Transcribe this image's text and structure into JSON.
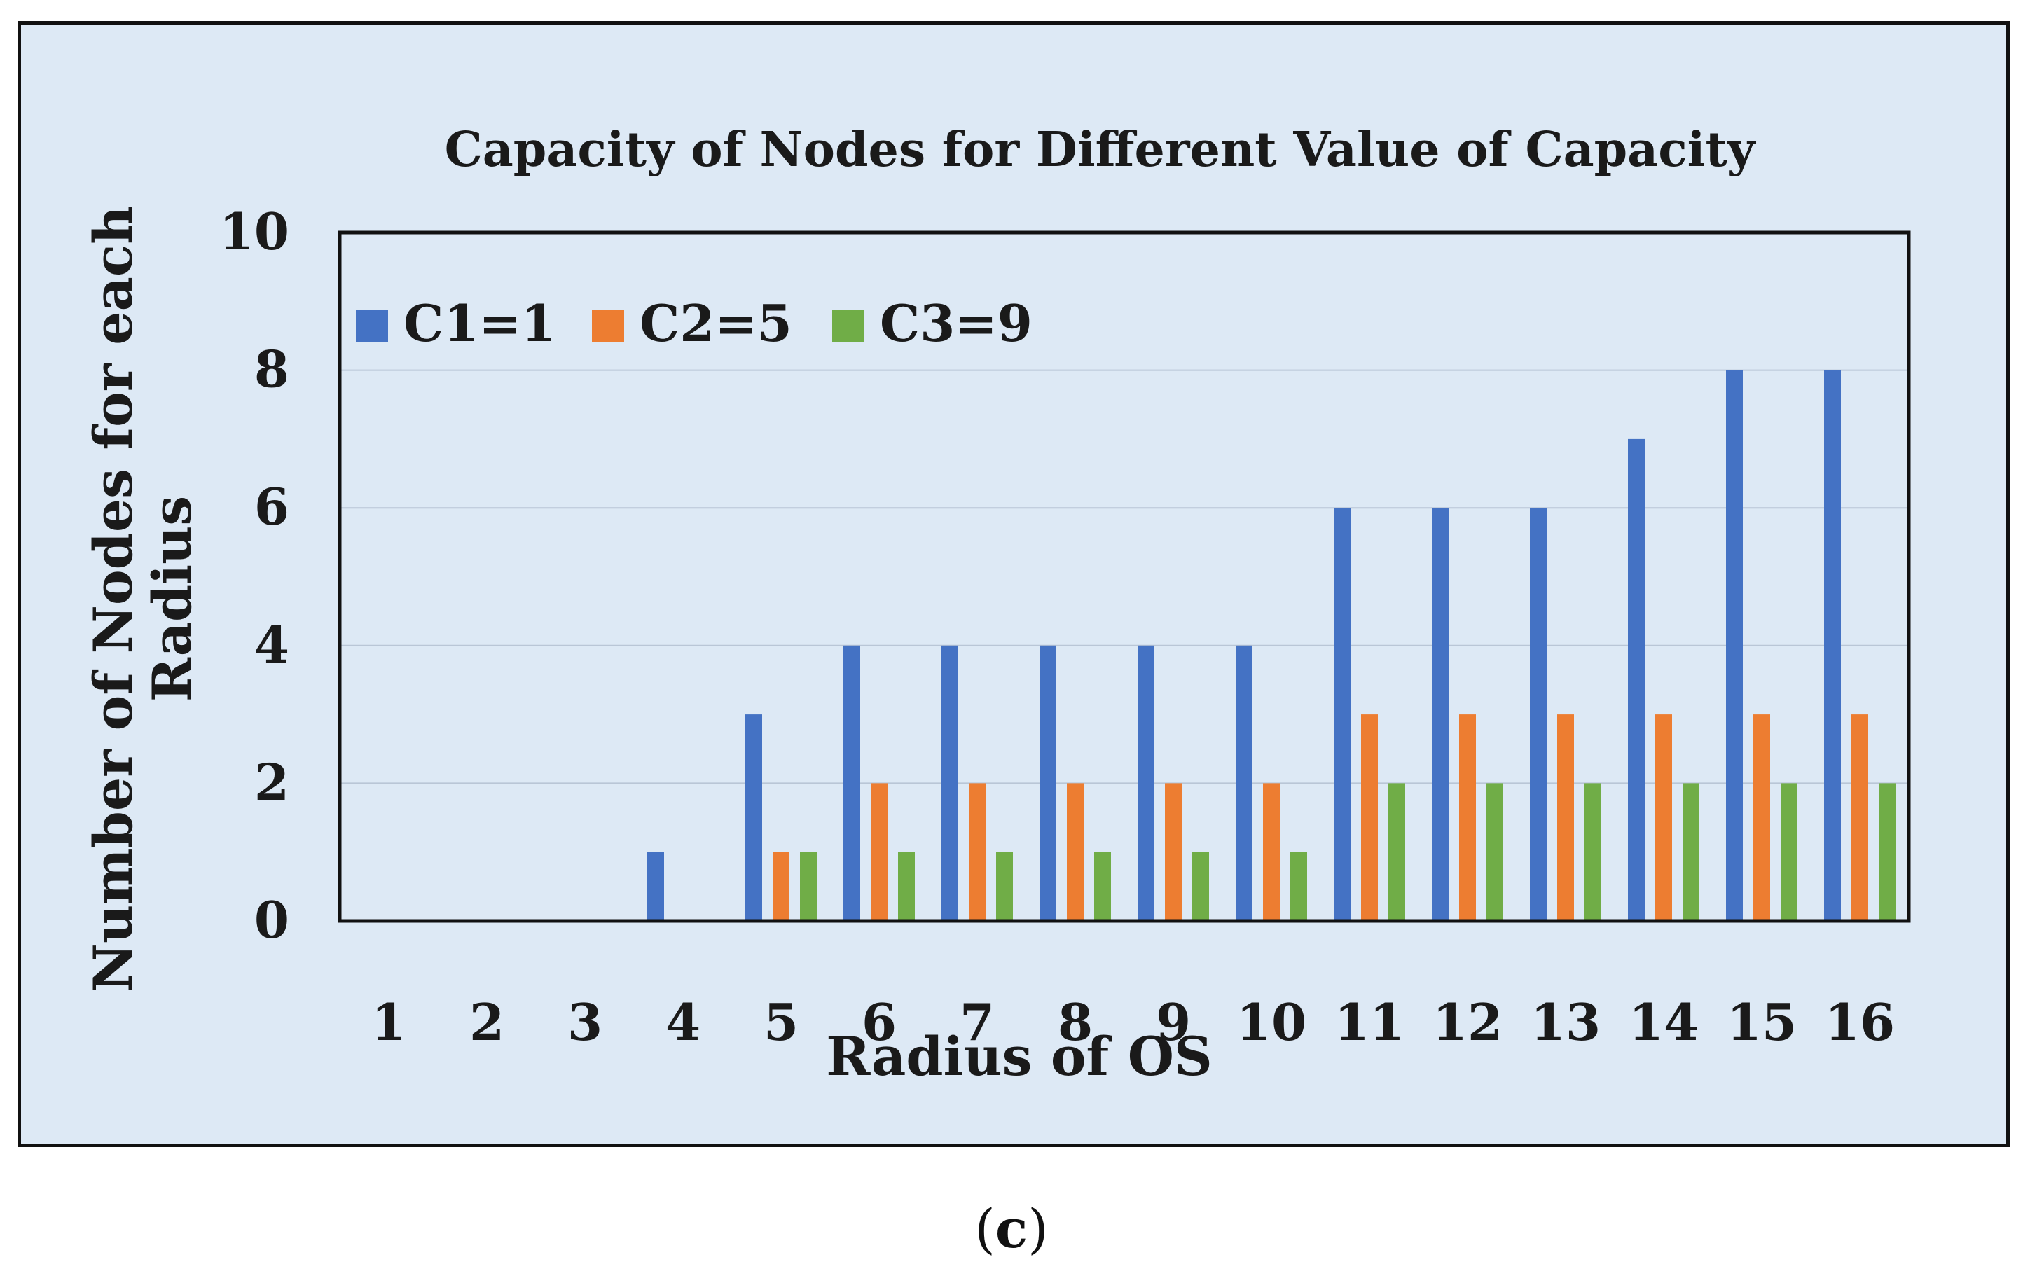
{
  "chart_data": {
    "type": "bar",
    "title": "Capacity of Nodes for Different Value of Capacity",
    "xlabel": "Radius of OS",
    "ylabel_lines": [
      "Number of Nodes for each",
      "Radius"
    ],
    "categories": [
      "1",
      "2",
      "3",
      "4",
      "5",
      "6",
      "7",
      "8",
      "9",
      "10",
      "11",
      "12",
      "13",
      "14",
      "15",
      "16"
    ],
    "series": [
      {
        "name": "C1=1",
        "color": "#4472c4",
        "values": [
          0,
          0,
          0,
          1,
          3,
          4,
          4,
          4,
          4,
          4,
          6,
          6,
          6,
          7,
          8,
          8
        ]
      },
      {
        "name": "C2=5",
        "color": "#ed7d31",
        "values": [
          0,
          0,
          0,
          0,
          1,
          2,
          2,
          2,
          2,
          2,
          3,
          3,
          3,
          3,
          3,
          3
        ]
      },
      {
        "name": "C3=9",
        "color": "#70ad47",
        "values": [
          0,
          0,
          0,
          0,
          1,
          1,
          1,
          1,
          1,
          1,
          2,
          2,
          2,
          2,
          2,
          2
        ]
      }
    ],
    "ylim": [
      0,
      10
    ],
    "yticks": [
      "0",
      "2",
      "4",
      "6",
      "8",
      "10"
    ],
    "grid": true,
    "legend": "top-left"
  },
  "caption": {
    "open": "(",
    "letter": "c",
    "close": ")"
  }
}
